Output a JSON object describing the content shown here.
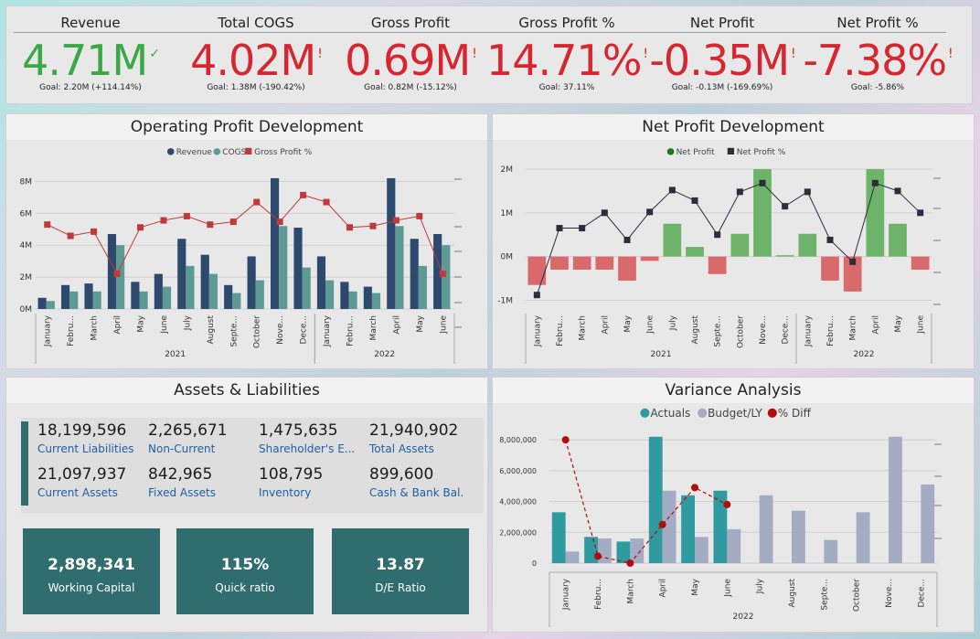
{
  "kpis": [
    {
      "label": "Revenue",
      "value": "4.71M",
      "mark": "✓",
      "status": "good",
      "goal": "Goal: 2.20M (+114.14%)"
    },
    {
      "label": "Total COGS",
      "value": "4.02M",
      "mark": "!",
      "status": "bad",
      "goal": "Goal: 1.38M (-190.42%)"
    },
    {
      "label": "Gross Profit",
      "value": "0.69M",
      "mark": "!",
      "status": "bad",
      "goal": "Goal: 0.82M (-15.12%)"
    },
    {
      "label": "Gross Profit %",
      "value": "14.71%",
      "mark": "!",
      "status": "bad",
      "goal": "Goal: 37.11%"
    },
    {
      "label": "Net Profit",
      "value": "-0.35M",
      "mark": "!",
      "status": "bad",
      "goal": "Goal: -0.13M (-169.69%)"
    },
    {
      "label": "Net Profit %",
      "value": "-7.38%",
      "mark": "!",
      "status": "bad",
      "goal": "Goal: -5.86%"
    }
  ],
  "colors": {
    "revenue": "#2d4a6e",
    "cogs": "#5e9a94",
    "gross_pct": "#c0393b",
    "net_pos": "#6db36a",
    "net_neg": "#d9696b",
    "actuals": "#2f9aa0",
    "budget": "#a3acc2",
    "diff": "#b30c0c",
    "good": "#3aa845",
    "bad": "#d7262f"
  },
  "operating": {
    "title": "Operating Profit Development",
    "legend": [
      "Revenue",
      "COGS",
      "Gross Profit %"
    ]
  },
  "net": {
    "title": "Net Profit Development",
    "legend": [
      "Net Profit",
      "Net Profit %"
    ]
  },
  "assets": {
    "title": "Assets & Liabilities",
    "items": [
      {
        "value": "18,199,596",
        "label": "Current Liabilities"
      },
      {
        "value": "2,265,671",
        "label": "Non-Current"
      },
      {
        "value": "1,475,635",
        "label": "Shareholder's E..."
      },
      {
        "value": "21,940,902",
        "label": "Total Assets"
      },
      {
        "value": "21,097,937",
        "label": "Current Assets"
      },
      {
        "value": "842,965",
        "label": "Fixed Assets"
      },
      {
        "value": "108,795",
        "label": "Inventory"
      },
      {
        "value": "899,600",
        "label": "Cash & Bank Bal."
      }
    ],
    "cards": [
      {
        "value": "2,898,341",
        "label": "Working Capital"
      },
      {
        "value": "115%",
        "label": "Quick ratio"
      },
      {
        "value": "13.87",
        "label": "D/E Ratio"
      }
    ]
  },
  "variance": {
    "title": "Variance Analysis",
    "legend": [
      "Actuals",
      "Budget/LY",
      "% Diff"
    ]
  },
  "chart_data": [
    {
      "type": "bar",
      "name": "operating",
      "title": "Operating Profit Development",
      "categories": [
        "January",
        "Febru...",
        "March",
        "April",
        "May",
        "June",
        "July",
        "August",
        "Septe...",
        "October",
        "Nove...",
        "Dece...",
        "January",
        "Febru...",
        "March",
        "April",
        "May",
        "June"
      ],
      "year_groups": [
        {
          "label": "2021",
          "count": 12
        },
        {
          "label": "2022",
          "count": 6
        }
      ],
      "series": [
        {
          "name": "Revenue",
          "values": [
            0.7,
            1.5,
            1.6,
            4.7,
            1.7,
            2.2,
            4.4,
            3.4,
            1.5,
            3.3,
            8.2,
            5.1,
            3.3,
            1.7,
            1.4,
            8.2,
            4.4,
            4.7
          ]
        },
        {
          "name": "COGS",
          "values": [
            0.5,
            1.1,
            1.1,
            4.0,
            1.1,
            1.4,
            2.7,
            2.2,
            1.0,
            1.8,
            5.2,
            2.6,
            1.8,
            1.1,
            1.0,
            5.2,
            2.7,
            4.0
          ]
        },
        {
          "name": "Gross Profit %",
          "values": [
            60,
            52,
            55,
            25,
            58,
            63,
            66,
            60,
            62,
            76,
            62,
            81,
            76,
            58,
            59,
            63,
            66,
            25
          ]
        }
      ],
      "yticks": [
        "0M",
        "2M",
        "4M",
        "6M",
        "8M"
      ],
      "ylim": [
        0,
        9
      ]
    },
    {
      "type": "bar",
      "name": "net",
      "title": "Net Profit Development",
      "categories": [
        "January",
        "Febru...",
        "March",
        "April",
        "May",
        "June",
        "July",
        "August",
        "Septe...",
        "October",
        "Nove...",
        "Dece...",
        "January",
        "Febru...",
        "March",
        "April",
        "May",
        "June"
      ],
      "year_groups": [
        {
          "label": "2021",
          "count": 12
        },
        {
          "label": "2022",
          "count": 6
        }
      ],
      "series": [
        {
          "name": "Net Profit",
          "values": [
            -0.65,
            -0.3,
            -0.3,
            -0.3,
            -0.55,
            -0.1,
            0.75,
            0.22,
            -0.4,
            0.52,
            2.0,
            0.03,
            0.52,
            -0.55,
            -0.8,
            2.0,
            0.75,
            -0.3
          ]
        },
        {
          "name": "Net Profit %",
          "values": [
            -0.88,
            0.65,
            0.65,
            1.0,
            0.38,
            1.02,
            1.52,
            1.28,
            0.5,
            1.48,
            1.68,
            1.15,
            1.48,
            0.38,
            -0.12,
            1.68,
            1.5,
            1.0
          ]
        }
      ],
      "yticks": [
        "-1M",
        "0M",
        "1M",
        "2M"
      ],
      "ylim": [
        -1.2,
        2.0
      ]
    },
    {
      "type": "bar",
      "name": "variance",
      "title": "Variance Analysis",
      "categories": [
        "January",
        "Febru...",
        "March",
        "April",
        "May",
        "June",
        "July",
        "August",
        "Septe...",
        "October",
        "Nove...",
        "Dece..."
      ],
      "year_groups": [
        {
          "label": "2022",
          "count": 12
        }
      ],
      "series": [
        {
          "name": "Actuals",
          "values": [
            3300000,
            1700000,
            1400000,
            8200000,
            4400000,
            4700000,
            null,
            null,
            null,
            null,
            null,
            null
          ]
        },
        {
          "name": "Budget/LY",
          "values": [
            750000,
            1600000,
            1600000,
            4700000,
            1700000,
            2200000,
            4400000,
            3400000,
            1500000,
            3300000,
            8200000,
            5100000
          ]
        },
        {
          "name": "% Diff",
          "values": [
            8000000,
            450000,
            0,
            2500000,
            4900000,
            3800000,
            null,
            null,
            null,
            null,
            null,
            null
          ]
        }
      ],
      "yticks": [
        "0",
        "2,000,000",
        "4,000,000",
        "6,000,000",
        "8,000,000"
      ],
      "ylim": [
        0,
        8600000
      ]
    }
  ]
}
